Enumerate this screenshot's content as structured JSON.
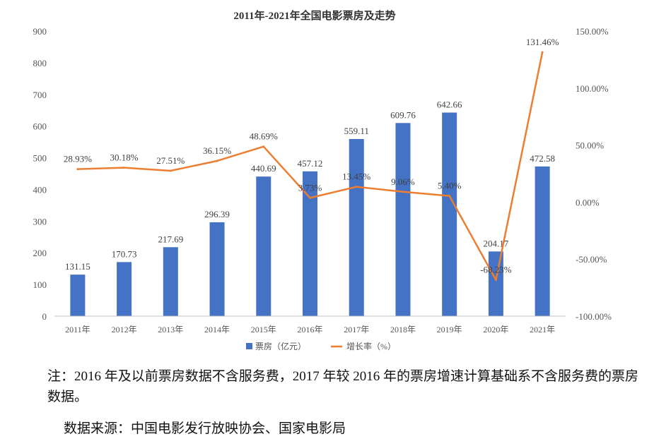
{
  "chart_data": {
    "type": "bar+line",
    "title": "2011年-2021年全国电影票房及走势",
    "categories": [
      "2011年",
      "2012年",
      "2013年",
      "2014年",
      "2015年",
      "2016年",
      "2017年",
      "2018年",
      "2019年",
      "2020年",
      "2021年"
    ],
    "series": [
      {
        "name": "票房（亿元）",
        "type": "bar",
        "axis": "left",
        "color": "#4472C4",
        "values": [
          131.15,
          170.73,
          217.69,
          296.39,
          440.69,
          457.12,
          559.11,
          609.76,
          642.66,
          204.17,
          472.58
        ],
        "labels": [
          "131.15",
          "170.73",
          "217.69",
          "296.39",
          "440.69",
          "457.12",
          "559.11",
          "609.76",
          "642.66",
          "204.17",
          "472.58"
        ]
      },
      {
        "name": "增长率（%）",
        "type": "line",
        "axis": "right",
        "color": "#ED7D31",
        "values": [
          28.93,
          30.18,
          27.51,
          36.15,
          48.69,
          3.73,
          13.45,
          9.06,
          5.4,
          -68.23,
          131.46
        ],
        "labels": [
          "28.93%",
          "30.18%",
          "27.51%",
          "36.15%",
          "48.69%",
          "3.73%",
          "13.45%",
          "9.06%",
          "5.40%",
          "-68.23%",
          "131.46%"
        ]
      }
    ],
    "y_left": {
      "min": 0,
      "max": 900,
      "step": 100,
      "ticks": [
        "0",
        "100",
        "200",
        "300",
        "400",
        "500",
        "600",
        "700",
        "800",
        "900"
      ]
    },
    "y_right": {
      "min": -100,
      "max": 150,
      "step": 50,
      "ticks": [
        "-100.00%",
        "-50.00%",
        "0.00%",
        "50.00%",
        "100.00%",
        "150.00%"
      ]
    },
    "grid": false,
    "legend": "bottom"
  },
  "note": "注：2016 年及以前票房数据不含服务费，2017 年较 2016 年的票房增速计算基础系不含服务费的票房数据。",
  "source": "数据来源：中国电影发行放映协会、国家电影局"
}
